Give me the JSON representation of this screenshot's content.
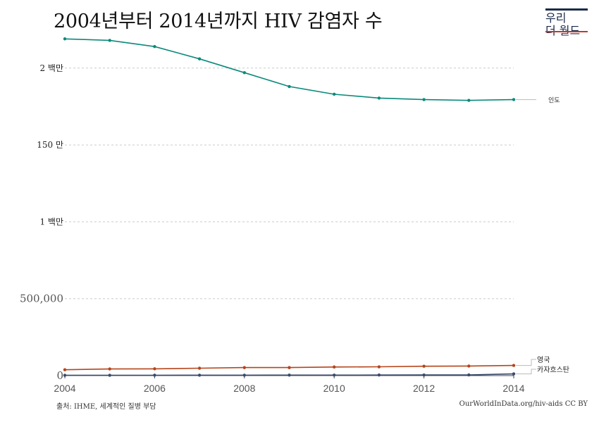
{
  "title": "2004년부터 2014년까지 HIV 감염자 수",
  "logo": {
    "line1": "우리",
    "line2": "더 월드"
  },
  "footer": {
    "source": "출처: IHME, 세계적인 질병 부담",
    "credit": "OurWorldInData.org/hiv-aids  CC BY"
  },
  "colors": {
    "india": "#0a8a7a",
    "uk": "#b5441a",
    "kazakhstan": "#3b4a6b",
    "grid": "#cccccc"
  },
  "chart_data": {
    "type": "line",
    "x": [
      2004,
      2005,
      2006,
      2007,
      2008,
      2009,
      2010,
      2011,
      2012,
      2013,
      2014
    ],
    "xlim": [
      2004,
      2014
    ],
    "ylim": [
      0,
      2150000
    ],
    "grid": true,
    "legend_placement": "right end labels",
    "x_tick_labels": [
      "2004",
      "2006",
      "2008",
      "2010",
      "2012",
      "2014"
    ],
    "y_ticks": [
      {
        "value": 0,
        "label": "0"
      },
      {
        "value": 500000,
        "label": "500,000"
      },
      {
        "value": 1000000,
        "label": "1 백만"
      },
      {
        "value": 1500000,
        "label": "150 만"
      },
      {
        "value": 2000000,
        "label": "2 백만"
      }
    ],
    "series": [
      {
        "name": "인도",
        "values": [
          2190000,
          2180000,
          2140000,
          2060000,
          1970000,
          1880000,
          1830000,
          1805000,
          1795000,
          1790000,
          1795000
        ]
      },
      {
        "name": "영국",
        "values": [
          38000,
          43000,
          44000,
          48000,
          52000,
          52000,
          56000,
          57000,
          61000,
          62000,
          66000
        ]
      },
      {
        "name": "카자흐스탄",
        "values": [
          2000,
          2200,
          2400,
          2600,
          2800,
          3000,
          3200,
          3500,
          3900,
          4300,
          11000
        ]
      }
    ]
  }
}
